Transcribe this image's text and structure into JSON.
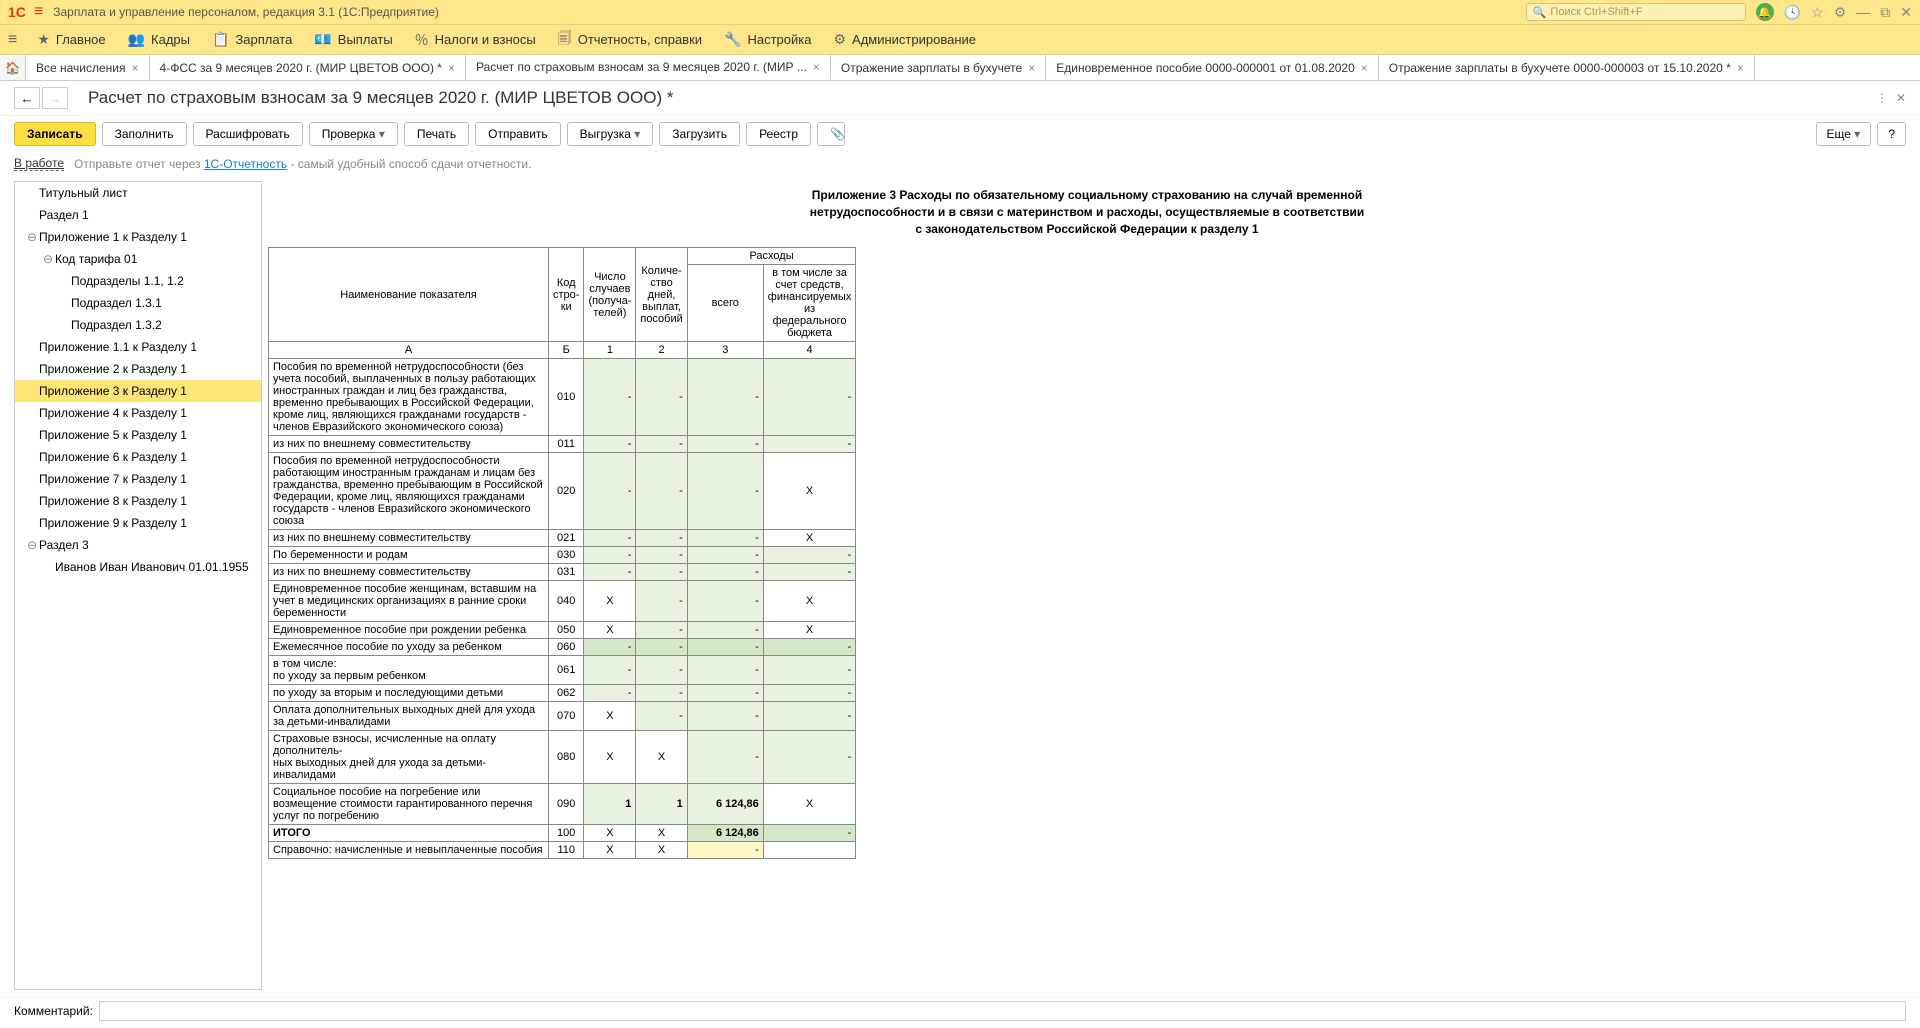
{
  "titlebar": {
    "logo": "1C",
    "title": "Зарплата и управление персоналом, редакция 3.1  (1С:Предприятие)",
    "search_placeholder": "Поиск Ctrl+Shift+F"
  },
  "mainmenu": [
    {
      "icon": "★",
      "label": "Главное"
    },
    {
      "icon": "👥",
      "label": "Кадры"
    },
    {
      "icon": "📋",
      "label": "Зарплата"
    },
    {
      "icon": "💶",
      "label": "Выплаты"
    },
    {
      "icon": "％",
      "label": "Налоги и взносы"
    },
    {
      "icon": "🗐",
      "label": "Отчетность, справки"
    },
    {
      "icon": "🔧",
      "label": "Настройка"
    },
    {
      "icon": "⚙",
      "label": "Администрирование"
    }
  ],
  "tabs": [
    {
      "label": "Все начисления",
      "close": true
    },
    {
      "label": "4-ФСС за 9 месяцев 2020 г. (МИР ЦВЕТОВ ООО) *",
      "close": true
    },
    {
      "label": "Расчет по страховым взносам за 9 месяцев 2020 г. (МИР ...",
      "close": true,
      "active": true
    },
    {
      "label": "Отражение зарплаты в бухучете",
      "close": true
    },
    {
      "label": "Единовременное пособие 0000-000001 от 01.08.2020",
      "close": true
    },
    {
      "label": "Отражение зарплаты в бухучете 0000-000003 от 15.10.2020 *",
      "close": true
    }
  ],
  "doc": {
    "title": "Расчет по страховым взносам за 9 месяцев 2020 г. (МИР ЦВЕТОВ ООО) *"
  },
  "toolbar": {
    "write": "Записать",
    "fill": "Заполнить",
    "decode": "Расшифровать",
    "check": "Проверка",
    "print": "Печать",
    "send": "Отправить",
    "upload": "Выгрузка",
    "load": "Загрузить",
    "registry": "Реестр",
    "more": "Еще"
  },
  "status": {
    "state": "В работе",
    "hint_pre": "Отправьте отчет через ",
    "hint_link": "1С-Отчетность",
    "hint_post": " - самый удобный способ сдачи отчетности."
  },
  "tree": [
    {
      "label": "Титульный лист",
      "level": 0
    },
    {
      "label": "Раздел 1",
      "level": 0
    },
    {
      "label": "Приложение 1 к Разделу 1",
      "level": 0,
      "exp": "⊖"
    },
    {
      "label": "Код тарифа 01",
      "level": 1,
      "exp": "⊖"
    },
    {
      "label": "Подразделы 1.1, 1.2",
      "level": 2
    },
    {
      "label": "Подраздел 1.3.1",
      "level": 2
    },
    {
      "label": "Подраздел 1.3.2",
      "level": 2
    },
    {
      "label": "Приложение 1.1 к Разделу 1",
      "level": 0
    },
    {
      "label": "Приложение 2 к Разделу 1",
      "level": 0
    },
    {
      "label": "Приложение 3 к Разделу 1",
      "level": 0,
      "selected": true
    },
    {
      "label": "Приложение 4 к Разделу 1",
      "level": 0
    },
    {
      "label": "Приложение 5 к Разделу 1",
      "level": 0
    },
    {
      "label": "Приложение 6 к Разделу 1",
      "level": 0
    },
    {
      "label": "Приложение 7 к Разделу 1",
      "level": 0
    },
    {
      "label": "Приложение 8 к Разделу 1",
      "level": 0
    },
    {
      "label": "Приложение 9 к Разделу 1",
      "level": 0
    },
    {
      "label": "Раздел 3",
      "level": 0,
      "exp": "⊖"
    },
    {
      "label": "Иванов Иван Иванович 01.01.1955",
      "level": 1
    }
  ],
  "report": {
    "title": "Приложение 3 Расходы по обязательному социальному страхованию на случай временной\nнетрудоспособности и в связи с материнством и расходы, осуществляемые в соответствии\nс законодательством Российской Федерации к разделу 1",
    "headers": {
      "name": "Наименование показателя",
      "code": "Код стро-\nки",
      "cases": "Число случаев (получа-\nтелей)",
      "days": "Количе-\nство дней, выплат, пособий",
      "expenses": "Расходы",
      "total": "всего",
      "fed": "в том числе за счет средств, финансируемых из федерального бюджета",
      "colA": "А",
      "colB": "Б",
      "col1": "1",
      "col2": "2",
      "col3": "3",
      "col4": "4"
    },
    "rows": [
      {
        "name": "Пособия по временной нетрудоспособности (без учета пособий, выплаченных в пользу работающих иностранных граждан и лиц без гражданства, временно пребывающих в Российской Федерации, кроме лиц, являющихся гражданами государств - членов Евразийского экономического союза)",
        "code": "010",
        "c1": "-",
        "c2": "-",
        "c3": "-",
        "c4": "-",
        "cls": "green"
      },
      {
        "name": "  из них по внешнему совместительству",
        "code": "011",
        "c1": "-",
        "c2": "-",
        "c3": "-",
        "c4": "-",
        "cls": "green"
      },
      {
        "name": "Пособия по временной нетрудоспособности работающим иностранным гражданам и лицам без гражданства, временно пребывающим в Российской Федерации, кроме лиц, являющихся гражданами государств - членов Евразийского экономического союза",
        "code": "020",
        "c1": "-",
        "c2": "-",
        "c3": "-",
        "c4": "X",
        "cls": "green",
        "c4cls": ""
      },
      {
        "name": "  из них по внешнему совместительству",
        "code": "021",
        "c1": "-",
        "c2": "-",
        "c3": "-",
        "c4": "X",
        "cls": "green",
        "c4cls": ""
      },
      {
        "name": "По беременности и родам",
        "code": "030",
        "c1": "-",
        "c2": "-",
        "c3": "-",
        "c4": "-",
        "cls": "green"
      },
      {
        "name": "  из них по внешнему совместительству",
        "code": "031",
        "c1": "-",
        "c2": "-",
        "c3": "-",
        "c4": "-",
        "cls": "green"
      },
      {
        "name": "Единовременное пособие женщинам, вставшим на учет в медицинских организациях в ранние сроки беременности",
        "code": "040",
        "c1": "X",
        "c2": "-",
        "c3": "-",
        "c4": "X",
        "cls": "green",
        "c1cls": "",
        "c4cls": ""
      },
      {
        "name": "Единовременное пособие при рождении ребенка",
        "code": "050",
        "c1": "X",
        "c2": "-",
        "c3": "-",
        "c4": "X",
        "cls": "green",
        "c1cls": "",
        "c4cls": ""
      },
      {
        "name": "Ежемесячное пособие по уходу за ребенком",
        "code": "060",
        "c1": "-",
        "c2": "-",
        "c3": "-",
        "c4": "-",
        "cls": "greend"
      },
      {
        "name": "  в том числе:\n  по уходу за первым ребенком",
        "code": "061",
        "c1": "-",
        "c2": "-",
        "c3": "-",
        "c4": "-",
        "cls": "green"
      },
      {
        "name": "  по уходу за вторым и последующими детьми",
        "code": "062",
        "c1": "-",
        "c2": "-",
        "c3": "-",
        "c4": "-",
        "cls": "green"
      },
      {
        "name": "Оплата дополнительных выходных дней для ухода за детьми-инвалидами",
        "code": "070",
        "c1": "X",
        "c2": "-",
        "c3": "-",
        "c4": "-",
        "cls": "green",
        "c1cls": ""
      },
      {
        "name": "Страховые взносы, исчисленные на оплату дополнитель-\nных выходных дней для ухода за детьми-инвалидами",
        "code": "080",
        "c1": "X",
        "c2": "X",
        "c3": "-",
        "c4": "-",
        "cls": "green",
        "c1cls": "",
        "c2cls": ""
      },
      {
        "name": "Социальное пособие на погребение или возмещение стоимости гарантированного перечня услуг по погребению",
        "code": "090",
        "c1": "1",
        "c2": "1",
        "c3": "6 124,86",
        "c4": "X",
        "cls": "green",
        "c4cls": "",
        "bold1": true
      },
      {
        "name": "ИТОГО",
        "code": "100",
        "c1": "X",
        "c2": "X",
        "c3": "6 124,86",
        "c4": "-",
        "cls": "greend",
        "c1cls": "",
        "c2cls": "",
        "bold": true
      },
      {
        "name": "Справочно: начисленные и невыплаченные пособия",
        "code": "110",
        "c1": "X",
        "c2": "X",
        "c3": "-",
        "c4": "",
        "cls": "",
        "c1cls": "",
        "c2cls": "",
        "c3cls": "yellow"
      }
    ]
  },
  "comment_label": "Комментарий:"
}
